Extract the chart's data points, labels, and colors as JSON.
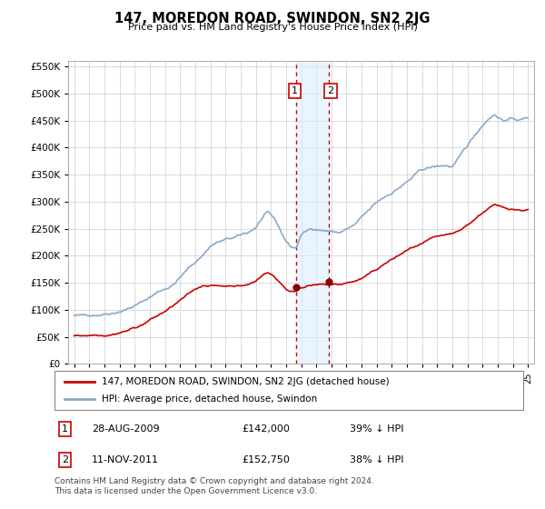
{
  "title": "147, MOREDON ROAD, SWINDON, SN2 2JG",
  "subtitle": "Price paid vs. HM Land Registry's House Price Index (HPI)",
  "legend_line1": "147, MOREDON ROAD, SWINDON, SN2 2JG (detached house)",
  "legend_line2": "HPI: Average price, detached house, Swindon",
  "footnote": "Contains HM Land Registry data © Crown copyright and database right 2024.\nThis data is licensed under the Open Government Licence v3.0.",
  "transactions": [
    {
      "label": "1",
      "date": "28-AUG-2009",
      "price": 142000,
      "pct": "39% ↓ HPI",
      "x": 2009.65
    },
    {
      "label": "2",
      "date": "11-NOV-2011",
      "price": 152750,
      "pct": "38% ↓ HPI",
      "x": 2011.86
    }
  ],
  "red_color": "#cc0000",
  "blue_color": "#88aacc",
  "shade_color": "#ddeeff",
  "vline_color": "#cc0000",
  "marker_color": "#880000",
  "ylim": [
    0,
    560000
  ],
  "xlim_start": 1994.6,
  "xlim_end": 2025.4,
  "xticks": [
    1995,
    1996,
    1997,
    1998,
    1999,
    2000,
    2001,
    2002,
    2003,
    2004,
    2005,
    2006,
    2007,
    2008,
    2009,
    2010,
    2011,
    2012,
    2013,
    2014,
    2015,
    2016,
    2017,
    2018,
    2019,
    2020,
    2021,
    2022,
    2023,
    2024,
    2025
  ]
}
